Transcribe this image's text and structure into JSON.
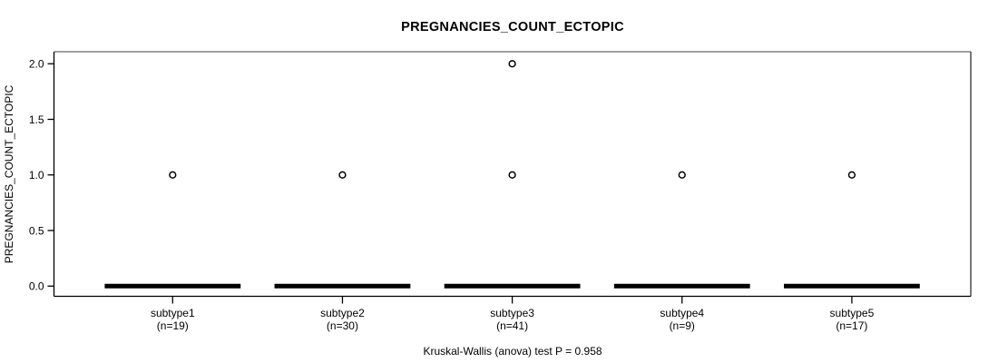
{
  "chart_data": {
    "type": "boxplot",
    "title": "PREGNANCIES_COUNT_ECTOPIC",
    "ylabel": "PREGNANCIES_COUNT_ECTOPIC",
    "xlabel": "",
    "caption": "Kruskal-Wallis (anova) test P = 0.958",
    "stat_test": {
      "name": "Kruskal-Wallis (anova) test",
      "p_value": "0.958"
    },
    "ylim": [
      0.0,
      2.0
    ],
    "yticks": [
      "0.0",
      "0.5",
      "1.0",
      "1.5",
      "2.0"
    ],
    "grid": false,
    "legend": false,
    "groups": [
      {
        "label": "subtype1",
        "n_label": "(n=19)",
        "n": 19,
        "median": 0,
        "q1": 0,
        "q3": 0,
        "whisker_low": 0,
        "whisker_high": 0,
        "outliers": [
          1
        ]
      },
      {
        "label": "subtype2",
        "n_label": "(n=30)",
        "n": 30,
        "median": 0,
        "q1": 0,
        "q3": 0,
        "whisker_low": 0,
        "whisker_high": 0,
        "outliers": [
          1
        ]
      },
      {
        "label": "subtype3",
        "n_label": "(n=41)",
        "n": 41,
        "median": 0,
        "q1": 0,
        "q3": 0,
        "whisker_low": 0,
        "whisker_high": 0,
        "outliers": [
          1,
          2
        ]
      },
      {
        "label": "subtype4",
        "n_label": "(n=9)",
        "n": 9,
        "median": 0,
        "q1": 0,
        "q3": 0,
        "whisker_low": 0,
        "whisker_high": 0,
        "outliers": [
          1
        ]
      },
      {
        "label": "subtype5",
        "n_label": "(n=17)",
        "n": 17,
        "median": 0,
        "q1": 0,
        "q3": 0,
        "whisker_low": 0,
        "whisker_high": 0,
        "outliers": [
          1
        ]
      }
    ],
    "colors": {
      "background": "#ffffff",
      "box": "#000000",
      "median": "#000000",
      "outlier_stroke": "#000000",
      "axis": "#000000",
      "frame_top": "#808080",
      "frame_right": "#4d4d4d",
      "text": "#000000"
    }
  }
}
